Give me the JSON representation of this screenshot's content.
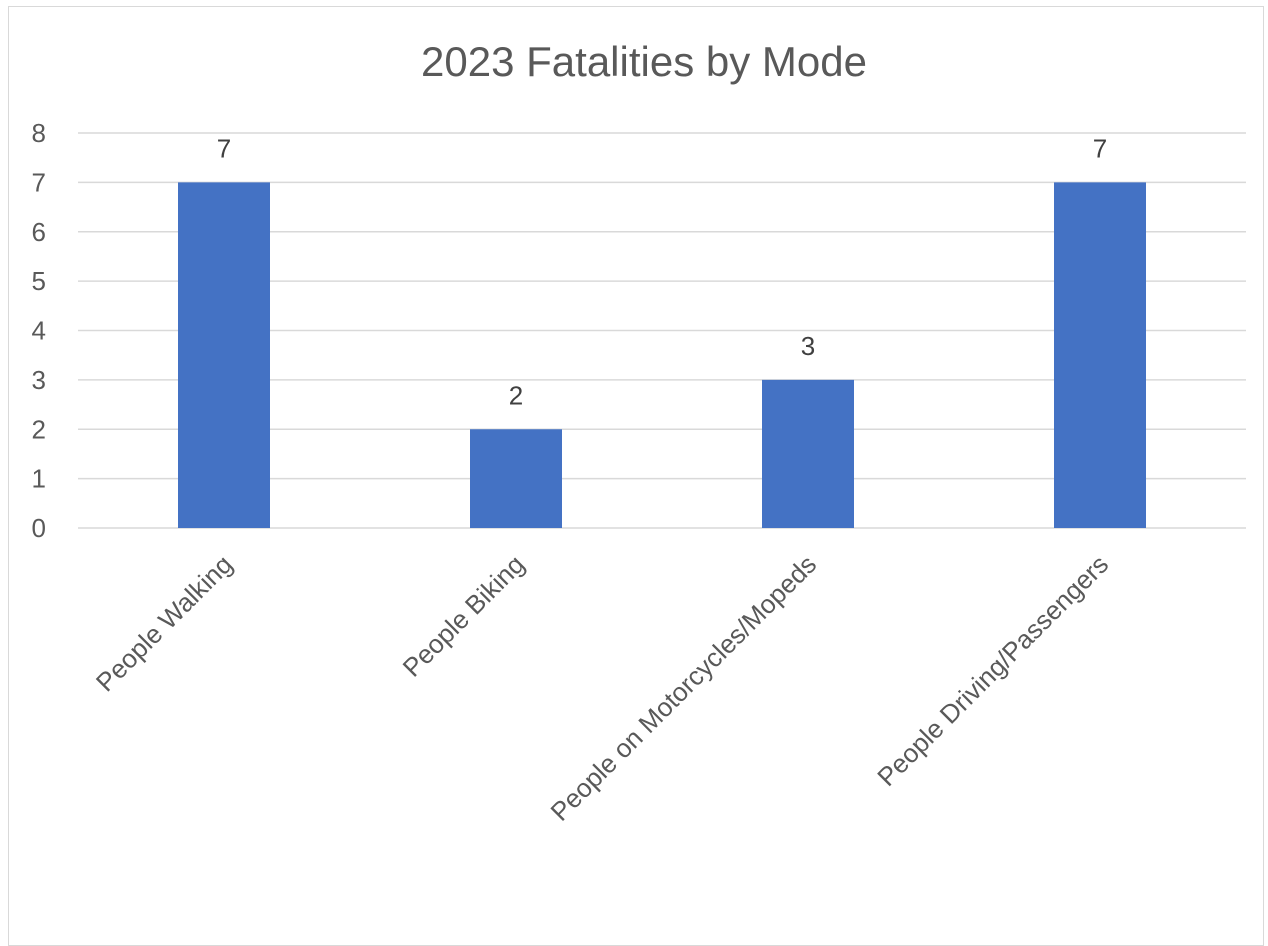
{
  "chart_data": {
    "type": "bar",
    "title": "2023 Fatalities by Mode",
    "xlabel": "",
    "ylabel": "",
    "categories": [
      "People Walking",
      "People Biking",
      "People on Motorcycles/Mopeds",
      "People Driving/Passengers"
    ],
    "series": [
      {
        "values": [
          7,
          2,
          3,
          7
        ],
        "color": "#4472c4"
      }
    ],
    "data_labels": [
      "7",
      "2",
      "3",
      "7"
    ],
    "ylim": [
      0,
      8
    ],
    "yticks": [
      "0",
      "1",
      "2",
      "3",
      "4",
      "5",
      "6",
      "7",
      "8"
    ],
    "grid": true,
    "legend": "none"
  }
}
